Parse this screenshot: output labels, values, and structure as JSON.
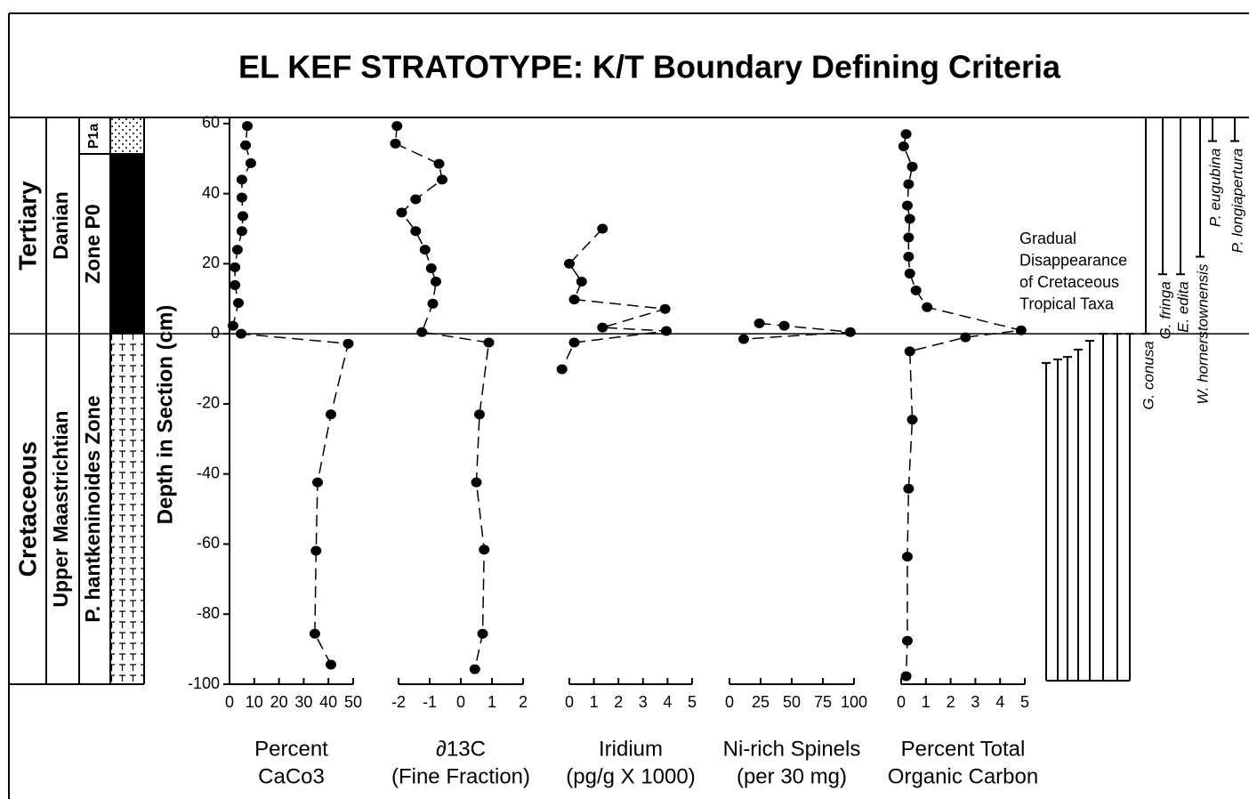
{
  "chart_data": {
    "title": "EL KEF STRATOTYPE:  K/T Boundary Defining Criteria",
    "ylabel": "Depth in Section (cm)",
    "ylim": [
      -100,
      62
    ],
    "yticks": [
      -100,
      -80,
      -60,
      -40,
      -20,
      0,
      20,
      40,
      60
    ],
    "boundary_depth": 0,
    "stratigraphy": {
      "systems": [
        "Tertiary",
        "Cretaceous"
      ],
      "stages": [
        "Danian",
        "Upper Maastrichtian"
      ],
      "zones": [
        "P1a",
        "Zone P0",
        "P. hantkeninoides Zone"
      ]
    },
    "panels": [
      {
        "type": "line",
        "xlabel": [
          "Percent",
          "CaCo3"
        ],
        "xlim": [
          0,
          50
        ],
        "xticks": [
          0,
          10,
          20,
          30,
          40,
          50
        ],
        "x": [
          7.2,
          6.5,
          8.6,
          5,
          5,
          5.4,
          5,
          3.2,
          2.2,
          2.2,
          3.6,
          1.4,
          4.7,
          48,
          41,
          35.6,
          35,
          34.5,
          41
        ],
        "y": [
          59.3,
          53.8,
          48.7,
          44,
          38.9,
          33.6,
          29.3,
          24,
          19,
          13.9,
          8.8,
          2.3,
          0,
          -2.8,
          -23,
          -42.4,
          -61.9,
          -85.6,
          -94.4
        ]
      },
      {
        "type": "line",
        "xlabel": [
          "∂13C",
          "(Fine Fraction)"
        ],
        "xlim": [
          -2,
          2
        ],
        "xticks": [
          -2,
          -1,
          0,
          1,
          2
        ],
        "x": [
          -2.05,
          -2.1,
          -0.7,
          -0.6,
          -1.45,
          -1.9,
          -1.45,
          -1.15,
          -0.95,
          -0.8,
          -0.9,
          -1.25,
          0.9,
          0.6,
          0.5,
          0.75,
          0.7,
          0.45
        ],
        "y": [
          59.3,
          54.3,
          48.5,
          44,
          38.4,
          34.6,
          29.3,
          24,
          18.7,
          14.9,
          8.6,
          0.5,
          -2.5,
          -23,
          -42.4,
          -61.6,
          -85.6,
          -95.7
        ]
      },
      {
        "type": "line",
        "xlabel": [
          "Iridium",
          "(pg/g X 1000)"
        ],
        "xlim": [
          0,
          5
        ],
        "xticks": [
          0,
          1,
          2,
          3,
          4,
          5
        ],
        "x": [
          1.35,
          0,
          0.5,
          0.2,
          3.9,
          1.35,
          3.95,
          0.2,
          -0.3
        ],
        "y": [
          30,
          20,
          14.9,
          9.8,
          7.1,
          1.8,
          0.8,
          -2.5,
          -10.1
        ]
      },
      {
        "type": "line",
        "xlabel": [
          "Ni-rich Spinels",
          "(per 30 mg)"
        ],
        "xlim": [
          0,
          100
        ],
        "xticks": [
          0,
          25,
          50,
          75,
          100
        ],
        "x": [
          24,
          44,
          97,
          11.4
        ],
        "y": [
          3,
          2.3,
          0.5,
          -1.5
        ]
      },
      {
        "type": "line",
        "xlabel": [
          "Percent Total",
          "Organic Carbon"
        ],
        "xlim": [
          0,
          5
        ],
        "xticks": [
          0,
          1,
          2,
          3,
          4,
          5
        ],
        "x": [
          0.2,
          0.1,
          0.45,
          0.3,
          0.25,
          0.35,
          0.3,
          0.3,
          0.35,
          0.6,
          1.05,
          4.85,
          2.6,
          0.35,
          0.45,
          0.3,
          0.25,
          0.25,
          0.2
        ],
        "y": [
          57,
          53.5,
          47.7,
          42.7,
          36.6,
          32.8,
          27.5,
          22,
          17.2,
          12.4,
          7.6,
          1,
          -1,
          -5,
          -24.5,
          -44.2,
          -63.6,
          -87.6,
          -97.7
        ]
      }
    ],
    "annotation": [
      "Gradual",
      "Disappearance",
      "of Cretaceous",
      "Tropical Taxa"
    ],
    "cretaceous_ranges": [
      {
        "top": -8.3,
        "base": -99
      },
      {
        "top": -7.3,
        "base": -99
      },
      {
        "top": -6.6,
        "base": -99
      },
      {
        "top": -4.5,
        "base": -99
      },
      {
        "top": -2,
        "base": -99
      },
      {
        "top": 0,
        "base": -99
      },
      {
        "top": 0,
        "base": -99
      },
      {
        "top": 0,
        "base": -99
      }
    ],
    "taxa": [
      {
        "name": "G. conusa",
        "top": 62,
        "base": 0
      },
      {
        "name": "G. fringa",
        "top": 62,
        "base": 17
      },
      {
        "name": "E. edita",
        "top": 62,
        "base": 17
      },
      {
        "name": "W. hornerstownensis",
        "top": 62,
        "base": 22
      },
      {
        "name": "P. eugubina",
        "top": 62,
        "base": 55
      },
      {
        "name": "P. longiapertura",
        "top": 62,
        "base": 55
      }
    ]
  }
}
